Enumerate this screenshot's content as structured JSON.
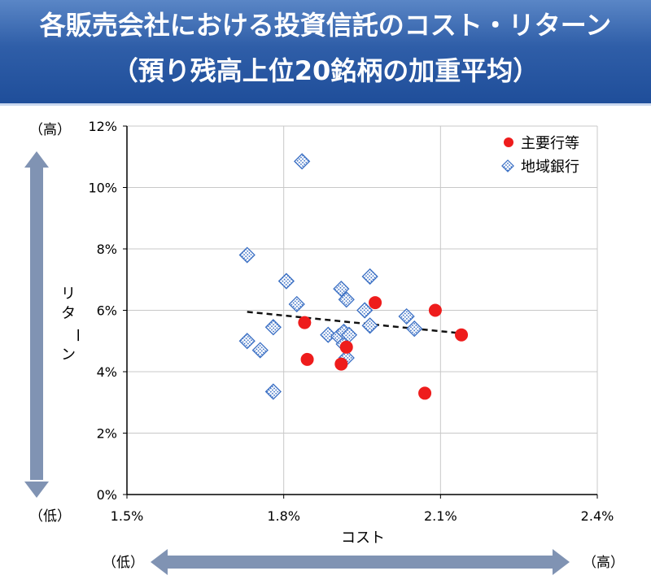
{
  "header": {
    "title_line1": "各販売会社における投資信託のコスト・リターン",
    "title_line2": "（預り残高上位20銘柄の加重平均）"
  },
  "y_axis_side": {
    "high_label": "（高）",
    "low_label": "（低）",
    "label_chars": [
      "リ",
      "タ",
      "ー",
      "ン"
    ]
  },
  "x_axis_side": {
    "low_label": "（低）",
    "high_label": "（高）"
  },
  "colors": {
    "banner": "#2f5ea8",
    "major_bank": "#ee1c1c",
    "regional_bank": "#3a6fc4",
    "arrow": "#8093b3"
  },
  "chart_data": {
    "type": "scatter",
    "xlabel": "コスト",
    "ylabel": "リターン",
    "xlim": [
      1.5,
      2.4
    ],
    "ylim": [
      0,
      12
    ],
    "x_ticks": [
      "1.5%",
      "1.8%",
      "2.1%",
      "2.4%"
    ],
    "y_ticks": [
      "0%",
      "2%",
      "4%",
      "6%",
      "8%",
      "10%",
      "12%"
    ],
    "grid": true,
    "legend_position": "top-right",
    "series": [
      {
        "name": "主要行等",
        "marker": "circle",
        "x": [
          1.84,
          1.845,
          1.91,
          1.92,
          1.975,
          2.07,
          2.09,
          2.14
        ],
        "y": [
          5.6,
          4.4,
          4.25,
          4.8,
          6.25,
          3.3,
          6.0,
          5.2
        ]
      },
      {
        "name": "地域銀行",
        "marker": "diamond",
        "x": [
          1.73,
          1.73,
          1.755,
          1.78,
          1.78,
          1.805,
          1.825,
          1.835,
          1.885,
          1.905,
          1.91,
          1.915,
          1.915,
          1.92,
          1.92,
          1.925,
          1.955,
          1.965,
          1.965,
          2.035,
          2.05
        ],
        "y": [
          7.8,
          5.0,
          4.7,
          5.45,
          3.35,
          6.95,
          6.2,
          10.85,
          5.2,
          5.15,
          6.7,
          4.9,
          5.3,
          6.35,
          4.45,
          5.2,
          6.0,
          7.1,
          5.5,
          5.8,
          5.4
        ]
      }
    ],
    "trendline": {
      "style": "dashed",
      "x": [
        1.73,
        2.14
      ],
      "y": [
        5.95,
        5.25
      ]
    }
  }
}
